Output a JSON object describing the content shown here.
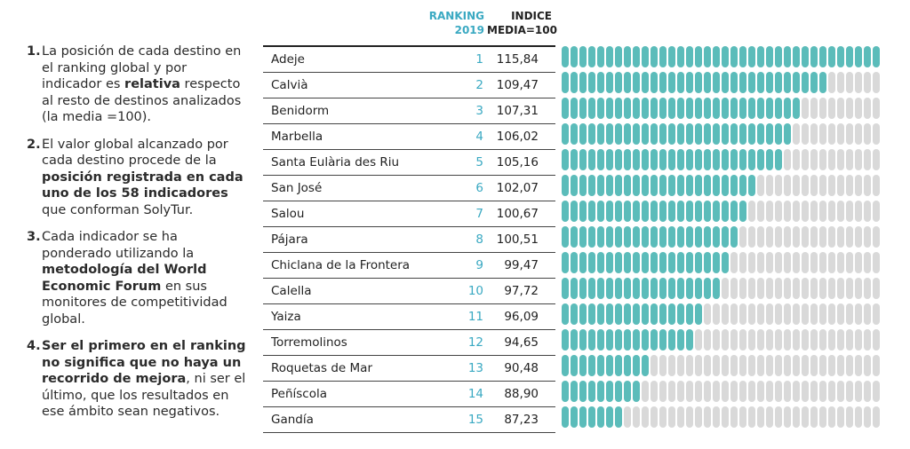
{
  "notes": [
    {
      "num": "1.",
      "parts": [
        {
          "t": "La posición de cada destino en el ranking global y por indicador es ",
          "b": false
        },
        {
          "t": "relativa",
          "b": true
        },
        {
          "t": " respecto al resto de destinos analizados (la media =100).",
          "b": false
        }
      ]
    },
    {
      "num": "2.",
      "parts": [
        {
          "t": "El valor global alcanzado por cada destino procede de la ",
          "b": false
        },
        {
          "t": "posición registrada en cada uno de los 58 indicadores",
          "b": true
        },
        {
          "t": " que conforman SolyTur.",
          "b": false
        }
      ]
    },
    {
      "num": "3.",
      "parts": [
        {
          "t": "Cada indicador se ha ponderado utilizando la ",
          "b": false
        },
        {
          "t": "metodología del World Economic Forum",
          "b": true
        },
        {
          "t": " en sus monitores de competitividad global.",
          "b": false
        }
      ]
    },
    {
      "num": "4.",
      "parts": [
        {
          "t": "Ser el primero en el ranking no significa que no haya un recorrido de mejora",
          "b": true
        },
        {
          "t": ", ni ser el último, que los resultados en ese ámbito sean negativos.",
          "b": false
        }
      ]
    }
  ],
  "header": {
    "ranking_line1": "RANKING",
    "ranking_line2": "2019",
    "index_line1": "INDICE",
    "index_line2": "MEDIA=100"
  },
  "colors": {
    "accent": "#3aa9c2",
    "bar_filled": "#5bbcba",
    "bar_empty": "#d9d9d9"
  },
  "chart_data": {
    "type": "bar",
    "orientation": "horizontal",
    "columns": [
      "Destino",
      "RANKING 2019",
      "INDICE MEDIA=100"
    ],
    "categories": [
      "Adeje",
      "Calvià",
      "Benidorm",
      "Marbella",
      "Santa Eulària des Riu",
      "San José",
      "Salou",
      "Pájara",
      "Chiclana de la Frontera",
      "Calella",
      "Yaiza",
      "Torremolinos",
      "Roquetas de Mar",
      "Peñíscola",
      "Gandía"
    ],
    "ranks": [
      "1",
      "2",
      "3",
      "4",
      "5",
      "6",
      "7",
      "8",
      "9",
      "10",
      "11",
      "12",
      "13",
      "14",
      "15"
    ],
    "value_labels": [
      "115,84",
      "109,47",
      "107,31",
      "106,02",
      "105,16",
      "102,07",
      "100,67",
      "100,51",
      "99,47",
      "97,72",
      "96,09",
      "94,65",
      "90,48",
      "88,90",
      "87,23"
    ],
    "values": [
      115.84,
      109.47,
      107.31,
      106.02,
      105.16,
      102.07,
      100.67,
      100.51,
      99.47,
      97.72,
      96.09,
      94.65,
      90.48,
      88.9,
      87.23
    ],
    "filled_units": [
      36,
      30,
      27,
      26,
      25,
      22,
      21,
      20,
      19,
      18,
      16,
      15,
      10,
      9,
      7
    ],
    "total_units": 36
  }
}
